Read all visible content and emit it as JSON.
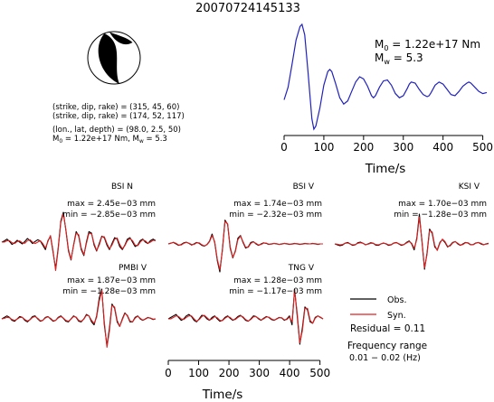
{
  "title": "20070724145133",
  "mechanism": {
    "plane1": "(strike, dip, rake) = (315, 45, 60)",
    "plane2": "(strike, dip, rake) = (174, 52, 117)",
    "location": "(lon., lat, depth) = (98.0, 2.5, 50)",
    "m0_prefix": "M",
    "m0_sub": "0",
    "m0_value": " = 1.22e+17 Nm, M",
    "mw_sub": "w",
    "mw_value": " = 5.3"
  },
  "stf_annotation": {
    "m0_prefix": "M",
    "m0_sub": "0",
    "m0_value": " = 1.22e+17 Nm",
    "mw_prefix": "M",
    "mw_sub": "w",
    "mw_value": " = 5.3"
  },
  "stations": [
    {
      "name": "BSI N",
      "max": "max = 2.45e−03 mm",
      "min": "min = −2.85e−03 mm"
    },
    {
      "name": "BSI V",
      "max": "max = 1.74e−03 mm",
      "min": "min = −2.32e−03 mm"
    },
    {
      "name": "KSI V",
      "max": "max = 1.70e−03 mm",
      "min": "min = −1.28e−03 mm"
    },
    {
      "name": "PMBI V",
      "max": "max = 1.87e−03 mm",
      "min": "min = −1.28e−03 mm"
    },
    {
      "name": "TNG V",
      "max": "max = 1.28e−03 mm",
      "min": "min = −1.17e−03 mm"
    }
  ],
  "legend": {
    "obs": "Obs.",
    "syn": "Syn.",
    "residual": "Residual = 0.11",
    "freq_label": "Frequency range",
    "freq_value": "0.01 − 0.02 (Hz)"
  },
  "colors": {
    "observed": "#000000",
    "synthetic": "#e02020",
    "stf": "#2222bb"
  },
  "chart_data": [
    {
      "type": "line",
      "xlabel": "Time/s",
      "xlim": [
        0,
        510
      ],
      "xticks": [
        0,
        100,
        200,
        300,
        400,
        500
      ],
      "series": [
        {
          "x": [
            0,
            10,
            20,
            30,
            40,
            45,
            52,
            60,
            70,
            75,
            80,
            90,
            100,
            110,
            115,
            120,
            130,
            140,
            150,
            160,
            170,
            180,
            190,
            200,
            210,
            220,
            225,
            230,
            240,
            250,
            260,
            270,
            280,
            290,
            300,
            310,
            315,
            320,
            330,
            340,
            350,
            360,
            365,
            370,
            380,
            390,
            400,
            410,
            420,
            430,
            440,
            450,
            460,
            465,
            470,
            480,
            490,
            500,
            510
          ],
          "y": [
            0.28,
            0.4,
            0.62,
            0.85,
            0.98,
            1.0,
            0.9,
            0.55,
            0.1,
            0.0,
            0.03,
            0.2,
            0.42,
            0.55,
            0.57,
            0.55,
            0.43,
            0.3,
            0.24,
            0.27,
            0.36,
            0.45,
            0.5,
            0.48,
            0.41,
            0.32,
            0.3,
            0.32,
            0.4,
            0.46,
            0.47,
            0.42,
            0.34,
            0.3,
            0.32,
            0.39,
            0.43,
            0.45,
            0.44,
            0.38,
            0.33,
            0.31,
            0.32,
            0.35,
            0.42,
            0.45,
            0.43,
            0.38,
            0.33,
            0.32,
            0.36,
            0.41,
            0.44,
            0.45,
            0.44,
            0.4,
            0.36,
            0.34,
            0.35
          ]
        }
      ]
    },
    {
      "type": "line",
      "xlabel": "Time/s",
      "xlim": [
        0,
        510
      ],
      "xticks": [
        0,
        100,
        200,
        300,
        400,
        500
      ],
      "series": [
        {
          "name": "Obs.",
          "station": "BSI N",
          "y": [
            0.0,
            0.04,
            0.1,
            0.02,
            -0.08,
            -0.02,
            0.06,
            0.0,
            -0.06,
            0.02,
            0.12,
            0.05,
            -0.05,
            0.02,
            0.08,
            0.04,
            -0.1,
            -0.25,
            0.05,
            0.2,
            -0.35,
            -0.9,
            -0.2,
            0.7,
            1.0,
            0.4,
            -0.3,
            -0.6,
            -0.1,
            0.35,
            0.2,
            -0.25,
            -0.45,
            0.0,
            0.35,
            0.3,
            -0.1,
            -0.3,
            -0.05,
            0.2,
            0.15,
            -0.1,
            -0.25,
            -0.05,
            0.15,
            0.1,
            -0.15,
            -0.25,
            -0.1,
            0.1,
            0.15,
            0.0,
            -0.15,
            -0.1,
            0.05,
            0.1,
            0.0,
            -0.05,
            0.05,
            0.1,
            0.05
          ]
        },
        {
          "name": "Syn.",
          "station": "BSI N",
          "y": [
            0.0,
            0.0,
            0.05,
            0.05,
            -0.02,
            -0.05,
            0.02,
            0.04,
            -0.02,
            -0.04,
            0.05,
            0.08,
            0.0,
            -0.05,
            0.0,
            0.05,
            -0.05,
            -0.2,
            0.02,
            0.22,
            -0.3,
            -0.95,
            -0.25,
            0.65,
            0.95,
            0.42,
            -0.25,
            -0.58,
            -0.12,
            0.3,
            0.25,
            -0.2,
            -0.42,
            -0.05,
            0.3,
            0.28,
            -0.05,
            -0.28,
            -0.1,
            0.18,
            0.18,
            -0.05,
            -0.22,
            -0.1,
            0.1,
            0.14,
            -0.08,
            -0.22,
            -0.12,
            0.05,
            0.12,
            0.05,
            -0.1,
            -0.12,
            0.0,
            0.08,
            0.04,
            -0.04,
            0.0,
            0.06,
            0.05
          ]
        },
        {
          "name": "Obs.",
          "station": "BSI V",
          "y": [
            0.0,
            0.03,
            0.05,
            0.0,
            -0.05,
            -0.02,
            0.04,
            0.06,
            0.02,
            -0.04,
            0.0,
            0.05,
            0.02,
            -0.05,
            -0.08,
            -0.02,
            0.1,
            0.35,
            0.05,
            -0.6,
            -1.0,
            -0.2,
            0.85,
            0.7,
            -0.15,
            -0.5,
            -0.25,
            0.2,
            0.3,
            0.05,
            -0.15,
            -0.1,
            0.05,
            0.08,
            0.0,
            -0.05,
            0.0,
            0.04,
            0.02,
            -0.02,
            0.0,
            0.02,
            0.0,
            -0.02,
            0.0,
            0.02,
            0.0,
            -0.02,
            0.0,
            0.02,
            0.0,
            -0.02,
            0.0,
            0.02,
            0.0,
            0.0,
            0.02,
            0.0,
            -0.02,
            0.0,
            0.0
          ]
        },
        {
          "name": "Syn.",
          "station": "BSI V",
          "y": [
            0.0,
            0.02,
            0.06,
            0.02,
            -0.04,
            -0.04,
            0.02,
            0.05,
            0.03,
            -0.02,
            -0.02,
            0.04,
            0.04,
            -0.03,
            -0.07,
            -0.03,
            0.08,
            0.3,
            0.08,
            -0.55,
            -0.92,
            -0.25,
            0.8,
            0.72,
            -0.1,
            -0.48,
            -0.28,
            0.15,
            0.28,
            0.08,
            -0.12,
            -0.12,
            0.02,
            0.07,
            0.02,
            -0.04,
            -0.02,
            0.03,
            0.03,
            -0.01,
            -0.01,
            0.02,
            0.01,
            -0.02,
            -0.01,
            0.02,
            0.01,
            -0.01,
            -0.01,
            0.01,
            0.01,
            -0.01,
            -0.01,
            0.01,
            0.01,
            0.0,
            0.01,
            0.01,
            -0.01,
            0.0,
            0.0
          ]
        },
        {
          "name": "Obs.",
          "station": "KSI V",
          "y": [
            0.0,
            -0.03,
            -0.06,
            -0.04,
            0.02,
            0.05,
            0.0,
            -0.05,
            -0.03,
            0.04,
            0.06,
            0.02,
            -0.03,
            0.0,
            0.04,
            0.02,
            -0.04,
            -0.05,
            0.0,
            0.03,
            0.0,
            -0.05,
            -0.03,
            0.03,
            0.05,
            0.0,
            -0.05,
            -0.02,
            0.05,
            0.1,
            0.0,
            -0.2,
            0.2,
            1.0,
            0.1,
            -0.85,
            -0.3,
            0.5,
            0.35,
            -0.1,
            -0.2,
            0.05,
            0.15,
            0.05,
            -0.1,
            -0.05,
            0.05,
            0.08,
            0.0,
            -0.05,
            0.0,
            0.05,
            0.03,
            -0.03,
            -0.02,
            0.03,
            0.05,
            0.0,
            -0.03,
            0.0,
            0.02
          ]
        },
        {
          "name": "Syn.",
          "station": "KSI V",
          "y": [
            0.0,
            -0.01,
            -0.03,
            -0.02,
            0.02,
            0.03,
            0.0,
            -0.03,
            -0.02,
            0.02,
            0.04,
            0.02,
            -0.02,
            -0.01,
            0.02,
            0.02,
            -0.02,
            -0.03,
            0.0,
            0.02,
            0.01,
            -0.03,
            -0.02,
            0.02,
            0.04,
            0.01,
            -0.03,
            -0.02,
            0.03,
            0.08,
            0.02,
            -0.15,
            0.15,
            0.9,
            0.15,
            -0.8,
            -0.35,
            0.45,
            0.4,
            -0.05,
            -0.22,
            0.02,
            0.16,
            0.08,
            -0.08,
            -0.07,
            0.03,
            0.08,
            0.02,
            -0.04,
            -0.02,
            0.04,
            0.04,
            -0.02,
            -0.03,
            0.02,
            0.05,
            0.02,
            -0.02,
            -0.01,
            0.01
          ]
        },
        {
          "name": "Obs.",
          "station": "PMBI V",
          "y": [
            0.0,
            0.05,
            0.1,
            0.05,
            -0.05,
            -0.08,
            0.0,
            0.08,
            0.05,
            -0.05,
            -0.1,
            -0.02,
            0.08,
            0.1,
            0.0,
            -0.08,
            -0.05,
            0.05,
            0.08,
            0.0,
            -0.08,
            -0.05,
            0.05,
            0.1,
            0.02,
            -0.08,
            -0.1,
            0.0,
            0.1,
            0.05,
            -0.08,
            -0.1,
            0.0,
            0.15,
            0.1,
            -0.1,
            -0.2,
            0.1,
            0.7,
            1.0,
            -0.2,
            -0.9,
            -0.3,
            0.5,
            0.35,
            -0.1,
            -0.25,
            0.0,
            0.2,
            0.1,
            -0.1,
            -0.1,
            0.05,
            0.1,
            0.0,
            -0.05,
            0.0,
            0.05,
            0.02,
            -0.02,
            0.0
          ]
        },
        {
          "name": "Syn.",
          "station": "PMBI V",
          "y": [
            0.0,
            0.02,
            0.05,
            0.04,
            -0.02,
            -0.05,
            -0.01,
            0.05,
            0.05,
            -0.02,
            -0.07,
            -0.03,
            0.05,
            0.08,
            0.02,
            -0.06,
            -0.05,
            0.03,
            0.07,
            0.02,
            -0.06,
            -0.05,
            0.03,
            0.08,
            0.03,
            -0.05,
            -0.08,
            -0.01,
            0.08,
            0.06,
            -0.05,
            -0.08,
            -0.01,
            0.12,
            0.1,
            -0.05,
            -0.15,
            0.05,
            0.6,
            0.95,
            -0.1,
            -0.95,
            -0.4,
            0.45,
            0.4,
            -0.05,
            -0.25,
            -0.03,
            0.18,
            0.12,
            -0.07,
            -0.1,
            0.02,
            0.09,
            0.02,
            -0.04,
            -0.01,
            0.04,
            0.03,
            -0.01,
            0.0
          ]
        },
        {
          "name": "Obs.",
          "station": "TNG V",
          "y": [
            0.0,
            0.05,
            0.1,
            0.15,
            0.05,
            -0.05,
            0.0,
            0.1,
            0.15,
            0.08,
            -0.05,
            -0.1,
            0.0,
            0.12,
            0.1,
            0.0,
            -0.05,
            0.05,
            0.1,
            0.0,
            -0.08,
            -0.05,
            0.05,
            0.1,
            0.02,
            -0.05,
            0.0,
            0.08,
            0.12,
            0.05,
            -0.05,
            -0.08,
            0.0,
            0.1,
            0.08,
            0.0,
            -0.05,
            0.02,
            0.08,
            0.05,
            -0.02,
            -0.05,
            0.0,
            0.05,
            0.03,
            -0.05,
            0.0,
            0.1,
            -0.2,
            1.0,
            0.1,
            -0.85,
            -0.3,
            0.4,
            0.3,
            -0.1,
            -0.15,
            0.05,
            0.1,
            0.05,
            0.0
          ]
        },
        {
          "name": "Syn.",
          "station": "TNG V",
          "y": [
            0.0,
            0.0,
            0.05,
            0.1,
            0.08,
            0.0,
            -0.02,
            0.05,
            0.1,
            0.1,
            0.0,
            -0.08,
            -0.02,
            0.08,
            0.12,
            0.04,
            -0.04,
            0.0,
            0.08,
            0.04,
            -0.05,
            -0.06,
            0.02,
            0.08,
            0.05,
            -0.03,
            -0.02,
            0.05,
            0.1,
            0.07,
            -0.02,
            -0.07,
            -0.02,
            0.07,
            0.08,
            0.02,
            -0.04,
            0.0,
            0.06,
            0.06,
            0.0,
            -0.04,
            -0.01,
            0.04,
            0.04,
            -0.03,
            -0.02,
            0.06,
            -0.1,
            0.95,
            0.2,
            -0.8,
            -0.4,
            0.35,
            0.35,
            -0.05,
            -0.15,
            0.02,
            0.1,
            0.06,
            0.0
          ]
        }
      ]
    }
  ]
}
